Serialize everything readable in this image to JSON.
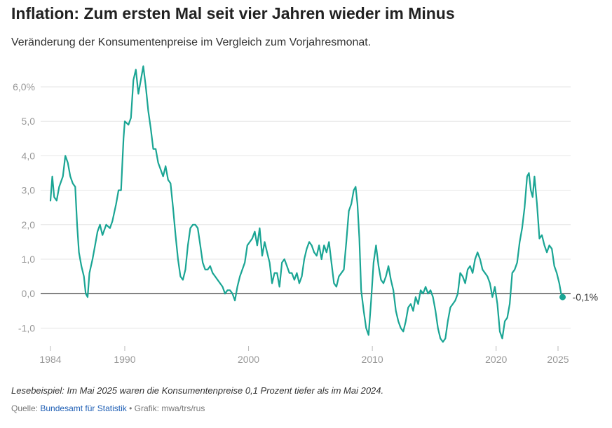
{
  "title": "Inflation: Zum ersten Mal seit vier Jahren wieder im Minus",
  "subtitle": "Veränderung der Konsumentenpreise im Vergleich zum Vorjahresmonat.",
  "note": "Lesebeispiel: Im Mai 2025 waren die Konsumentenpreise 0,1 Prozent tiefer als im Mai 2024.",
  "source": {
    "prefix": "Quelle:",
    "link_text": "Bundesamt für Statistik",
    "separator": "•",
    "credit": "Grafik: mwa/trs/rus"
  },
  "colors": {
    "line": "#1aa594",
    "grid": "#e6e6e6",
    "zero": "#222222",
    "ticks": "#999999"
  },
  "chart_data": {
    "type": "line",
    "title": "Inflation: Zum ersten Mal seit vier Jahren wieder im Minus",
    "xlabel": "",
    "ylabel": "",
    "xlim": [
      1984,
      2025.4
    ],
    "ylim": [
      -1.4,
      6.8
    ],
    "grid": true,
    "y_ticks": [
      {
        "value": 6,
        "label": "6,0%"
      },
      {
        "value": 5,
        "label": "5,0"
      },
      {
        "value": 4,
        "label": "4,0"
      },
      {
        "value": 3,
        "label": "3,0"
      },
      {
        "value": 2,
        "label": "2,0"
      },
      {
        "value": 1,
        "label": "1,0"
      },
      {
        "value": 0,
        "label": "0,0"
      },
      {
        "value": -1,
        "label": "-1,0"
      }
    ],
    "x_ticks": [
      {
        "value": 1984,
        "label": "1984"
      },
      {
        "value": 1990,
        "label": "1990"
      },
      {
        "value": 2000,
        "label": "2000"
      },
      {
        "value": 2010,
        "label": "2010"
      },
      {
        "value": 2020,
        "label": "2020"
      },
      {
        "value": 2025,
        "label": "2025"
      }
    ],
    "end_label": "-0,1%",
    "end_point": {
      "x": 2025.37,
      "y": -0.1
    },
    "series": [
      {
        "name": "Konsumentenpreise (Veränderung zum Vorjahresmonat, %)",
        "points": [
          [
            1984.0,
            2.7
          ],
          [
            1984.15,
            3.4
          ],
          [
            1984.3,
            2.8
          ],
          [
            1984.5,
            2.7
          ],
          [
            1984.7,
            3.1
          ],
          [
            1985.0,
            3.4
          ],
          [
            1985.2,
            4.0
          ],
          [
            1985.4,
            3.8
          ],
          [
            1985.6,
            3.4
          ],
          [
            1985.8,
            3.2
          ],
          [
            1986.0,
            3.1
          ],
          [
            1986.15,
            2.0
          ],
          [
            1986.3,
            1.2
          ],
          [
            1986.5,
            0.8
          ],
          [
            1986.7,
            0.5
          ],
          [
            1986.85,
            0.0
          ],
          [
            1987.0,
            -0.1
          ],
          [
            1987.15,
            0.6
          ],
          [
            1987.4,
            1.0
          ],
          [
            1987.6,
            1.4
          ],
          [
            1987.8,
            1.8
          ],
          [
            1988.0,
            2.0
          ],
          [
            1988.2,
            1.7
          ],
          [
            1988.5,
            2.0
          ],
          [
            1988.8,
            1.9
          ],
          [
            1989.0,
            2.1
          ],
          [
            1989.3,
            2.6
          ],
          [
            1989.5,
            3.0
          ],
          [
            1989.7,
            3.0
          ],
          [
            1989.9,
            4.5
          ],
          [
            1990.0,
            5.0
          ],
          [
            1990.3,
            4.9
          ],
          [
            1990.5,
            5.1
          ],
          [
            1990.7,
            6.2
          ],
          [
            1990.9,
            6.5
          ],
          [
            1991.1,
            5.8
          ],
          [
            1991.3,
            6.2
          ],
          [
            1991.5,
            6.6
          ],
          [
            1991.7,
            6.0
          ],
          [
            1991.9,
            5.3
          ],
          [
            1992.1,
            4.8
          ],
          [
            1992.3,
            4.2
          ],
          [
            1992.5,
            4.2
          ],
          [
            1992.7,
            3.8
          ],
          [
            1992.9,
            3.6
          ],
          [
            1993.1,
            3.4
          ],
          [
            1993.3,
            3.7
          ],
          [
            1993.5,
            3.3
          ],
          [
            1993.7,
            3.2
          ],
          [
            1993.9,
            2.5
          ],
          [
            1994.1,
            1.7
          ],
          [
            1994.3,
            1.0
          ],
          [
            1994.5,
            0.5
          ],
          [
            1994.7,
            0.4
          ],
          [
            1994.9,
            0.7
          ],
          [
            1995.1,
            1.4
          ],
          [
            1995.3,
            1.9
          ],
          [
            1995.5,
            2.0
          ],
          [
            1995.7,
            2.0
          ],
          [
            1995.9,
            1.9
          ],
          [
            1996.1,
            1.4
          ],
          [
            1996.3,
            0.9
          ],
          [
            1996.5,
            0.7
          ],
          [
            1996.7,
            0.7
          ],
          [
            1996.9,
            0.8
          ],
          [
            1997.1,
            0.6
          ],
          [
            1997.3,
            0.5
          ],
          [
            1997.5,
            0.4
          ],
          [
            1997.7,
            0.3
          ],
          [
            1997.9,
            0.2
          ],
          [
            1998.1,
            0.0
          ],
          [
            1998.3,
            0.1
          ],
          [
            1998.5,
            0.1
          ],
          [
            1998.7,
            0.0
          ],
          [
            1998.9,
            -0.2
          ],
          [
            1999.1,
            0.2
          ],
          [
            1999.3,
            0.5
          ],
          [
            1999.5,
            0.7
          ],
          [
            1999.7,
            0.9
          ],
          [
            1999.9,
            1.4
          ],
          [
            2000.1,
            1.5
          ],
          [
            2000.3,
            1.6
          ],
          [
            2000.5,
            1.8
          ],
          [
            2000.7,
            1.4
          ],
          [
            2000.9,
            1.9
          ],
          [
            2001.1,
            1.1
          ],
          [
            2001.3,
            1.5
          ],
          [
            2001.5,
            1.2
          ],
          [
            2001.7,
            0.9
          ],
          [
            2001.9,
            0.3
          ],
          [
            2002.1,
            0.6
          ],
          [
            2002.3,
            0.6
          ],
          [
            2002.5,
            0.2
          ],
          [
            2002.7,
            0.9
          ],
          [
            2002.9,
            1.0
          ],
          [
            2003.1,
            0.8
          ],
          [
            2003.3,
            0.6
          ],
          [
            2003.5,
            0.6
          ],
          [
            2003.7,
            0.4
          ],
          [
            2003.9,
            0.6
          ],
          [
            2004.1,
            0.3
          ],
          [
            2004.3,
            0.5
          ],
          [
            2004.5,
            1.0
          ],
          [
            2004.7,
            1.3
          ],
          [
            2004.9,
            1.5
          ],
          [
            2005.1,
            1.4
          ],
          [
            2005.3,
            1.2
          ],
          [
            2005.5,
            1.1
          ],
          [
            2005.7,
            1.4
          ],
          [
            2005.9,
            1.0
          ],
          [
            2006.1,
            1.4
          ],
          [
            2006.3,
            1.2
          ],
          [
            2006.5,
            1.5
          ],
          [
            2006.7,
            0.9
          ],
          [
            2006.9,
            0.3
          ],
          [
            2007.1,
            0.2
          ],
          [
            2007.3,
            0.5
          ],
          [
            2007.5,
            0.6
          ],
          [
            2007.7,
            0.7
          ],
          [
            2007.9,
            1.5
          ],
          [
            2008.1,
            2.4
          ],
          [
            2008.3,
            2.6
          ],
          [
            2008.5,
            3.0
          ],
          [
            2008.65,
            3.1
          ],
          [
            2008.8,
            2.6
          ],
          [
            2008.95,
            1.6
          ],
          [
            2009.1,
            0.1
          ],
          [
            2009.3,
            -0.5
          ],
          [
            2009.5,
            -1.0
          ],
          [
            2009.7,
            -1.2
          ],
          [
            2009.9,
            -0.2
          ],
          [
            2010.1,
            0.9
          ],
          [
            2010.3,
            1.4
          ],
          [
            2010.5,
            0.8
          ],
          [
            2010.7,
            0.4
          ],
          [
            2010.9,
            0.3
          ],
          [
            2011.1,
            0.5
          ],
          [
            2011.3,
            0.8
          ],
          [
            2011.5,
            0.4
          ],
          [
            2011.7,
            0.1
          ],
          [
            2011.9,
            -0.5
          ],
          [
            2012.1,
            -0.8
          ],
          [
            2012.3,
            -1.0
          ],
          [
            2012.5,
            -1.1
          ],
          [
            2012.7,
            -0.8
          ],
          [
            2012.9,
            -0.4
          ],
          [
            2013.1,
            -0.3
          ],
          [
            2013.3,
            -0.5
          ],
          [
            2013.5,
            -0.1
          ],
          [
            2013.7,
            -0.3
          ],
          [
            2013.9,
            0.1
          ],
          [
            2014.1,
            0.0
          ],
          [
            2014.3,
            0.2
          ],
          [
            2014.5,
            0.0
          ],
          [
            2014.7,
            0.1
          ],
          [
            2014.9,
            -0.1
          ],
          [
            2015.1,
            -0.5
          ],
          [
            2015.3,
            -1.0
          ],
          [
            2015.5,
            -1.3
          ],
          [
            2015.7,
            -1.4
          ],
          [
            2015.9,
            -1.3
          ],
          [
            2016.1,
            -0.8
          ],
          [
            2016.3,
            -0.4
          ],
          [
            2016.5,
            -0.3
          ],
          [
            2016.7,
            -0.2
          ],
          [
            2016.9,
            0.0
          ],
          [
            2017.1,
            0.6
          ],
          [
            2017.3,
            0.5
          ],
          [
            2017.5,
            0.3
          ],
          [
            2017.7,
            0.7
          ],
          [
            2017.9,
            0.8
          ],
          [
            2018.1,
            0.6
          ],
          [
            2018.3,
            1.0
          ],
          [
            2018.5,
            1.2
          ],
          [
            2018.7,
            1.0
          ],
          [
            2018.9,
            0.7
          ],
          [
            2019.1,
            0.6
          ],
          [
            2019.3,
            0.5
          ],
          [
            2019.5,
            0.3
          ],
          [
            2019.7,
            -0.1
          ],
          [
            2019.9,
            0.2
          ],
          [
            2020.1,
            -0.3
          ],
          [
            2020.3,
            -1.1
          ],
          [
            2020.5,
            -1.3
          ],
          [
            2020.7,
            -0.8
          ],
          [
            2020.9,
            -0.7
          ],
          [
            2021.1,
            -0.3
          ],
          [
            2021.3,
            0.6
          ],
          [
            2021.5,
            0.7
          ],
          [
            2021.7,
            0.9
          ],
          [
            2021.9,
            1.5
          ],
          [
            2022.1,
            1.9
          ],
          [
            2022.3,
            2.5
          ],
          [
            2022.5,
            3.4
          ],
          [
            2022.65,
            3.5
          ],
          [
            2022.8,
            3.0
          ],
          [
            2022.95,
            2.8
          ],
          [
            2023.1,
            3.4
          ],
          [
            2023.3,
            2.6
          ],
          [
            2023.5,
            1.6
          ],
          [
            2023.7,
            1.7
          ],
          [
            2023.9,
            1.4
          ],
          [
            2024.1,
            1.2
          ],
          [
            2024.3,
            1.4
          ],
          [
            2024.5,
            1.3
          ],
          [
            2024.7,
            0.8
          ],
          [
            2024.9,
            0.6
          ],
          [
            2025.1,
            0.3
          ],
          [
            2025.25,
            0.0
          ],
          [
            2025.37,
            -0.1
          ]
        ]
      }
    ]
  }
}
